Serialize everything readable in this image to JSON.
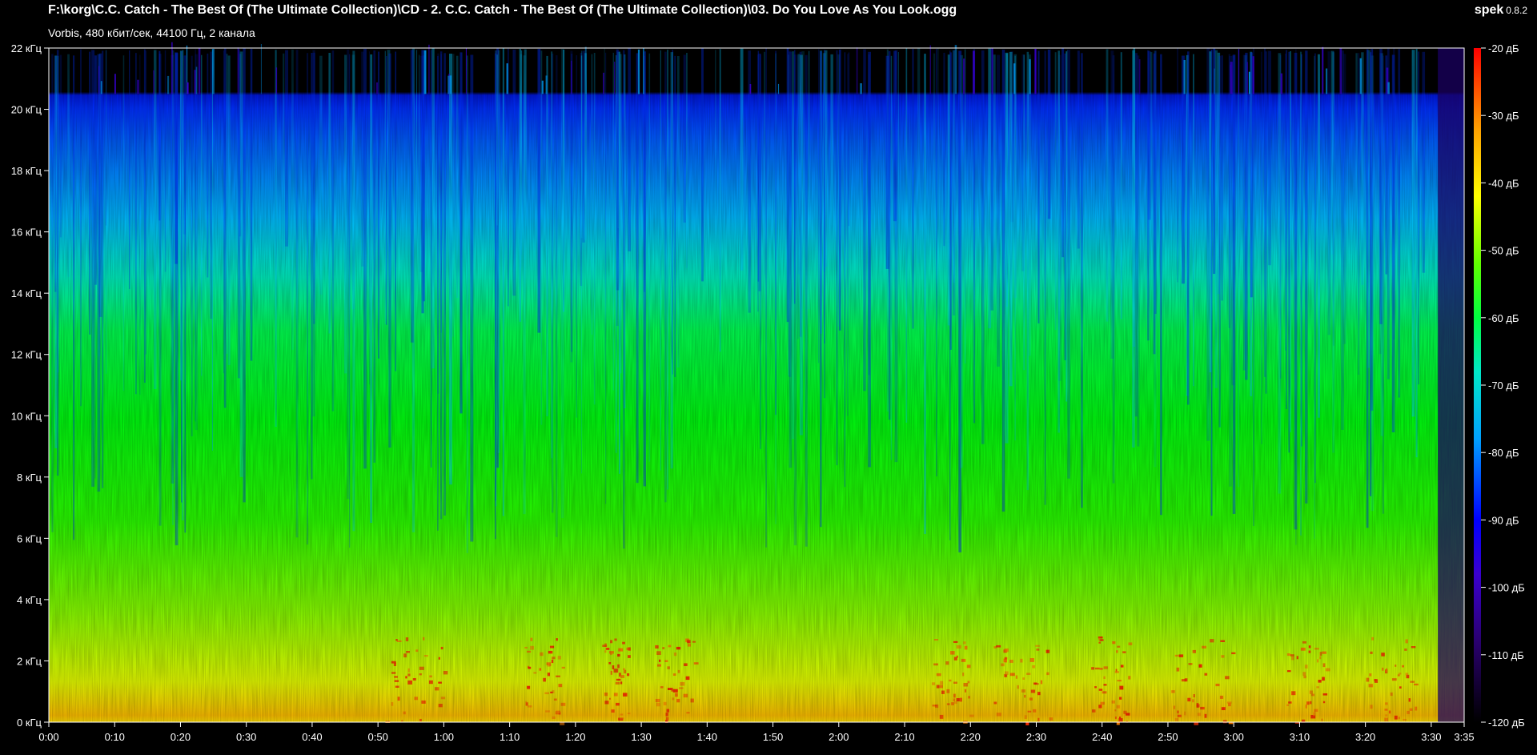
{
  "header": {
    "file_path": "F:\\korg\\C.C. Catch - The Best Of (The Ultimate Collection)\\CD - 2. C.C. Catch - The Best Of (The Ultimate Collection)\\03. Do You Love As You Look.ogg",
    "stream_info": "Vorbis, 480 кбит/сек, 44100 Гц, 2 канала",
    "app_name": "spek",
    "app_version": "0.8.2"
  },
  "colors": {
    "background": "#000000",
    "axis": "#ffffff",
    "palette": [
      "#000000",
      "#1a005a",
      "#3c00c8",
      "#0000ff",
      "#0060ff",
      "#00c8ff",
      "#00e6b4",
      "#00ff00",
      "#7aff00",
      "#ffff00",
      "#ffa500",
      "#ff0000"
    ]
  },
  "chart_data": {
    "type": "heatmap",
    "title": "",
    "xlabel": "",
    "ylabel": "",
    "x_unit": "time (m:ss)",
    "y_unit": "кГц",
    "z_unit": "дБ",
    "xlim": [
      0,
      215
    ],
    "ylim": [
      0,
      22
    ],
    "zlim": [
      -120,
      -20
    ],
    "x_ticks": [
      "0:00",
      "0:10",
      "0:20",
      "0:30",
      "0:40",
      "0:50",
      "1:00",
      "1:10",
      "1:20",
      "1:30",
      "1:40",
      "1:50",
      "2:00",
      "2:10",
      "2:20",
      "2:30",
      "2:40",
      "2:50",
      "3:00",
      "3:10",
      "3:20",
      "3:30",
      "3:35"
    ],
    "x_tick_values": [
      0,
      10,
      20,
      30,
      40,
      50,
      60,
      70,
      80,
      90,
      100,
      110,
      120,
      130,
      140,
      150,
      160,
      170,
      180,
      190,
      200,
      210,
      215
    ],
    "y_ticks": [
      "0 кГц",
      "2 кГц",
      "4 кГц",
      "6 кГц",
      "8 кГц",
      "10 кГц",
      "12 кГц",
      "14 кГц",
      "16 кГц",
      "18 кГц",
      "20 кГц",
      "22 кГц"
    ],
    "y_tick_values": [
      0,
      2,
      4,
      6,
      8,
      10,
      12,
      14,
      16,
      18,
      20,
      22
    ],
    "colorbar_ticks": [
      "-20 дБ",
      "-30 дБ",
      "-40 дБ",
      "-50 дБ",
      "-60 дБ",
      "-70 дБ",
      "-80 дБ",
      "-90 дБ",
      "-100 дБ",
      "-110 дБ",
      "-120 дБ"
    ],
    "colorbar_values": [
      -20,
      -30,
      -40,
      -50,
      -60,
      -70,
      -80,
      -90,
      -100,
      -110,
      -120
    ],
    "lowpass_cutoff_khz": 20.5,
    "legend_position": "right"
  }
}
